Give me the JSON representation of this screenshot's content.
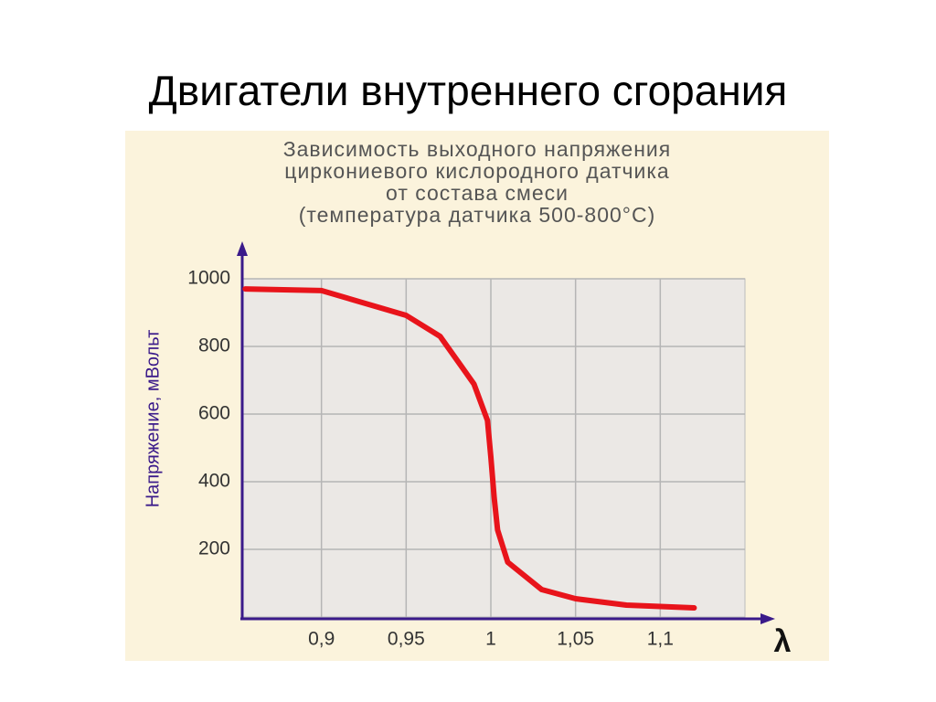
{
  "slide": {
    "title": "Двигатели внутреннего сгорания"
  },
  "chart_data": {
    "type": "line",
    "title": [
      "Зависимость выходного напряжения",
      "циркониевого кислородного датчика",
      "от состава смеси",
      "(температура датчика 500-800°С)"
    ],
    "y_label": "Напряжение, мВольт",
    "x_label": "λ",
    "x": [
      0.855,
      0.9,
      0.95,
      0.97,
      0.99,
      0.998,
      1.0,
      1.002,
      1.004,
      1.01,
      1.03,
      1.05,
      1.08,
      1.12
    ],
    "values": [
      970,
      965,
      892,
      830,
      689,
      581,
      473,
      351,
      257,
      162,
      81,
      54,
      35,
      27
    ],
    "color": "#e8141b",
    "xlim": [
      0.85,
      1.15
    ],
    "xticks": [
      {
        "value": 0.9,
        "label": "0,9"
      },
      {
        "value": 0.95,
        "label": "0,95"
      },
      1,
      {
        "value": 1.05,
        "label": "1,05"
      },
      {
        "value": 1.1,
        "label": "1,1"
      }
    ],
    "ylim": [
      0,
      1000
    ],
    "yticks": [
      200,
      400,
      600,
      800,
      1000
    ],
    "grid": true
  }
}
